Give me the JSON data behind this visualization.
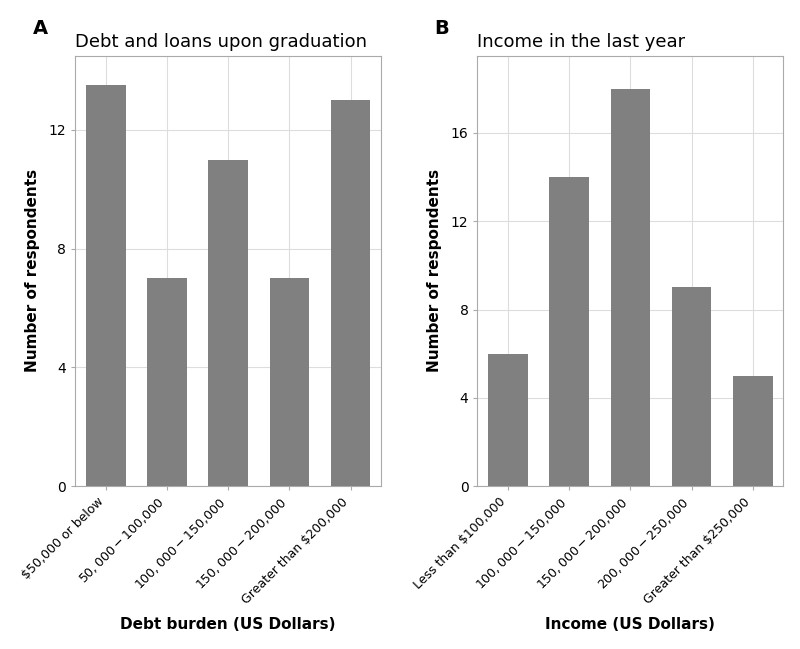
{
  "panel_A": {
    "title": "Debt and loans upon graduation",
    "label": "A",
    "categories": [
      "$50,000 or below",
      "$50,000 - $100,000",
      "$100,000 - $150,000",
      "$150,000 - $200,000",
      "Greater than $200,000"
    ],
    "values": [
      13.5,
      7,
      11,
      7,
      13
    ],
    "xlabel": "Debt burden (US Dollars)",
    "ylabel": "Number of respondents",
    "ylim": [
      0,
      14.5
    ],
    "yticks": [
      0,
      4,
      8,
      12
    ],
    "bar_color": "#808080"
  },
  "panel_B": {
    "title": "Income in the last year",
    "label": "B",
    "categories": [
      "Less than $100,000",
      "$100,000 - $150,000",
      "$150,000 - $200,000",
      "$200,000 - $250,000",
      "Greater than $250,000"
    ],
    "values": [
      6,
      14,
      18,
      9,
      5
    ],
    "xlabel": "Income (US Dollars)",
    "ylabel": "Number of respondents",
    "ylim": [
      0,
      19.5
    ],
    "yticks": [
      0,
      4,
      8,
      12,
      16
    ],
    "bar_color": "#808080"
  },
  "background_color": "#ffffff",
  "grid_color": "#dddddd",
  "bar_width": 0.65,
  "tick_fontsize": 10,
  "label_fontsize": 11,
  "title_fontsize": 13,
  "panel_label_fontsize": 14
}
